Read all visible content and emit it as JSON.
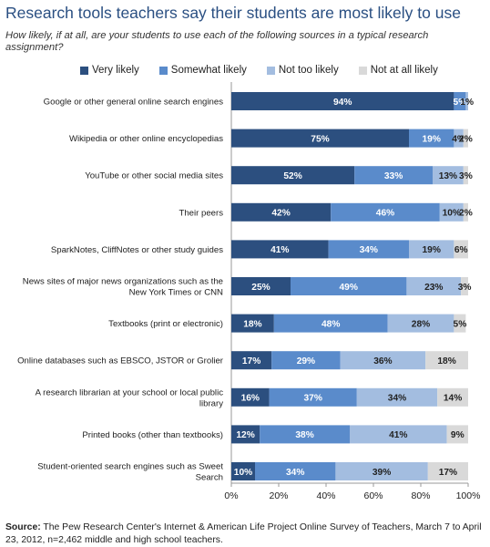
{
  "title": "Research tools teachers say their students are most likely to use",
  "subtitle": "How likely, if at all, are your students to use each of the following sources in a typical research assignment?",
  "source_label": "Source:",
  "source_text": "The Pew Research Center's Internet & American Life Project Online Survey of Teachers, March 7 to April 23, 2012, n=2,462 middle and high school teachers.",
  "chart_data": {
    "type": "bar",
    "orientation": "horizontal",
    "stacked": true,
    "legend_position": "top",
    "xlim": [
      0,
      100
    ],
    "x_ticks": [
      "0%",
      "20%",
      "40%",
      "60%",
      "80%",
      "100%"
    ],
    "categories": [
      [
        "Google or other general online search engines"
      ],
      [
        "Wikipedia or other online encyclopedias"
      ],
      [
        "YouTube or other social media sites"
      ],
      [
        "Their peers"
      ],
      [
        "SparkNotes, CliffNotes or other study guides"
      ],
      [
        "News sites of major news organizations such as the",
        "New York Times or CNN"
      ],
      [
        "Textbooks (print or electronic)"
      ],
      [
        "Online databases such as EBSCO, JSTOR or Grolier"
      ],
      [
        "A research librarian at your school or local public",
        "library"
      ],
      [
        "Printed books (other than textbooks)"
      ],
      [
        "Student-oriented search engines such as Sweet",
        "Search"
      ]
    ],
    "series": [
      {
        "name": "Very likely",
        "color": "#2c4f7f",
        "label_color": "#ffffff",
        "values": [
          94,
          75,
          52,
          42,
          41,
          25,
          18,
          17,
          16,
          12,
          10
        ]
      },
      {
        "name": "Somewhat likely",
        "color": "#5a8bcb",
        "label_color": "#ffffff",
        "values": [
          5,
          19,
          33,
          46,
          34,
          49,
          48,
          29,
          37,
          38,
          34
        ]
      },
      {
        "name": "Not too likely",
        "color": "#a3bde0",
        "label_color": "#222222",
        "values": [
          1,
          4,
          13,
          10,
          19,
          23,
          28,
          36,
          34,
          41,
          39
        ]
      },
      {
        "name": "Not at all likely",
        "color": "#d9d9d9",
        "label_color": "#222222",
        "values": [
          0,
          2,
          3,
          2,
          6,
          3,
          5,
          18,
          14,
          9,
          17
        ]
      }
    ],
    "value_labels": [
      [
        "94%",
        "5%",
        "1%",
        ""
      ],
      [
        "75%",
        "19%",
        "4%",
        "2%"
      ],
      [
        "52%",
        "33%",
        "13%",
        "3%"
      ],
      [
        "42%",
        "46%",
        "10%",
        "2%"
      ],
      [
        "41%",
        "34%",
        "19%",
        "6%"
      ],
      [
        "25%",
        "49%",
        "23%",
        "3%"
      ],
      [
        "18%",
        "48%",
        "28%",
        "5%"
      ],
      [
        "17%",
        "29%",
        "36%",
        "18%"
      ],
      [
        "16%",
        "37%",
        "34%",
        "14%"
      ],
      [
        "12%",
        "38%",
        "41%",
        "9%"
      ],
      [
        "10%",
        "34%",
        "39%",
        "17%"
      ]
    ]
  }
}
